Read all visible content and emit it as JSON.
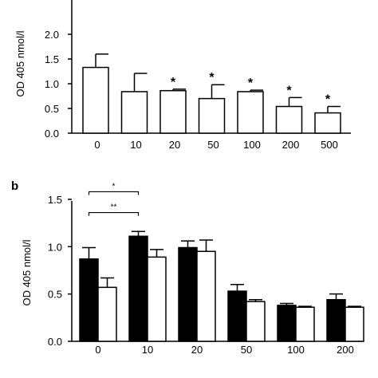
{
  "chart_data": [
    {
      "type": "bar",
      "panel_label": "",
      "ylabel": "OD 405 nmol/l",
      "xlabel": "",
      "ylim": [
        0,
        2.0
      ],
      "yticks": [
        "0.0",
        "0.5",
        "1.0",
        "1.5",
        "2.0"
      ],
      "categories": [
        "0",
        "10",
        "20",
        "50",
        "100",
        "200",
        "500"
      ],
      "series": [
        {
          "values": [
            1.33,
            0.84,
            0.86,
            0.7,
            0.84,
            0.54,
            0.41
          ],
          "errors": [
            0.27,
            0.37,
            0.03,
            0.28,
            0.03,
            0.18,
            0.13
          ],
          "fill": "#ffffff"
        }
      ],
      "significance": [
        "",
        "",
        "*",
        "*",
        "*",
        "*",
        "*"
      ]
    },
    {
      "type": "bar",
      "panel_label": "b",
      "ylabel": "OD 405 nmol/l",
      "xlabel": "",
      "ylim": [
        0,
        1.5
      ],
      "yticks": [
        "0.0",
        "0.5",
        "1.0",
        "1.5"
      ],
      "categories": [
        "0",
        "10",
        "20",
        "50",
        "100",
        "200"
      ],
      "series": [
        {
          "values": [
            0.87,
            1.11,
            0.99,
            0.53,
            0.38,
            0.44
          ],
          "errors": [
            0.12,
            0.05,
            0.07,
            0.07,
            0.02,
            0.06
          ],
          "fill": "#000000"
        },
        {
          "values": [
            0.57,
            0.89,
            0.95,
            0.42,
            0.36,
            0.36
          ],
          "errors": [
            0.1,
            0.08,
            0.12,
            0.02,
            0.01,
            0.01
          ],
          "fill": "#ffffff"
        }
      ],
      "brackets": [
        {
          "from": 0,
          "to": 1,
          "label": "*",
          "y": 1.58
        },
        {
          "from": 0,
          "to": 1,
          "label": "**",
          "y": 1.36
        }
      ]
    }
  ]
}
